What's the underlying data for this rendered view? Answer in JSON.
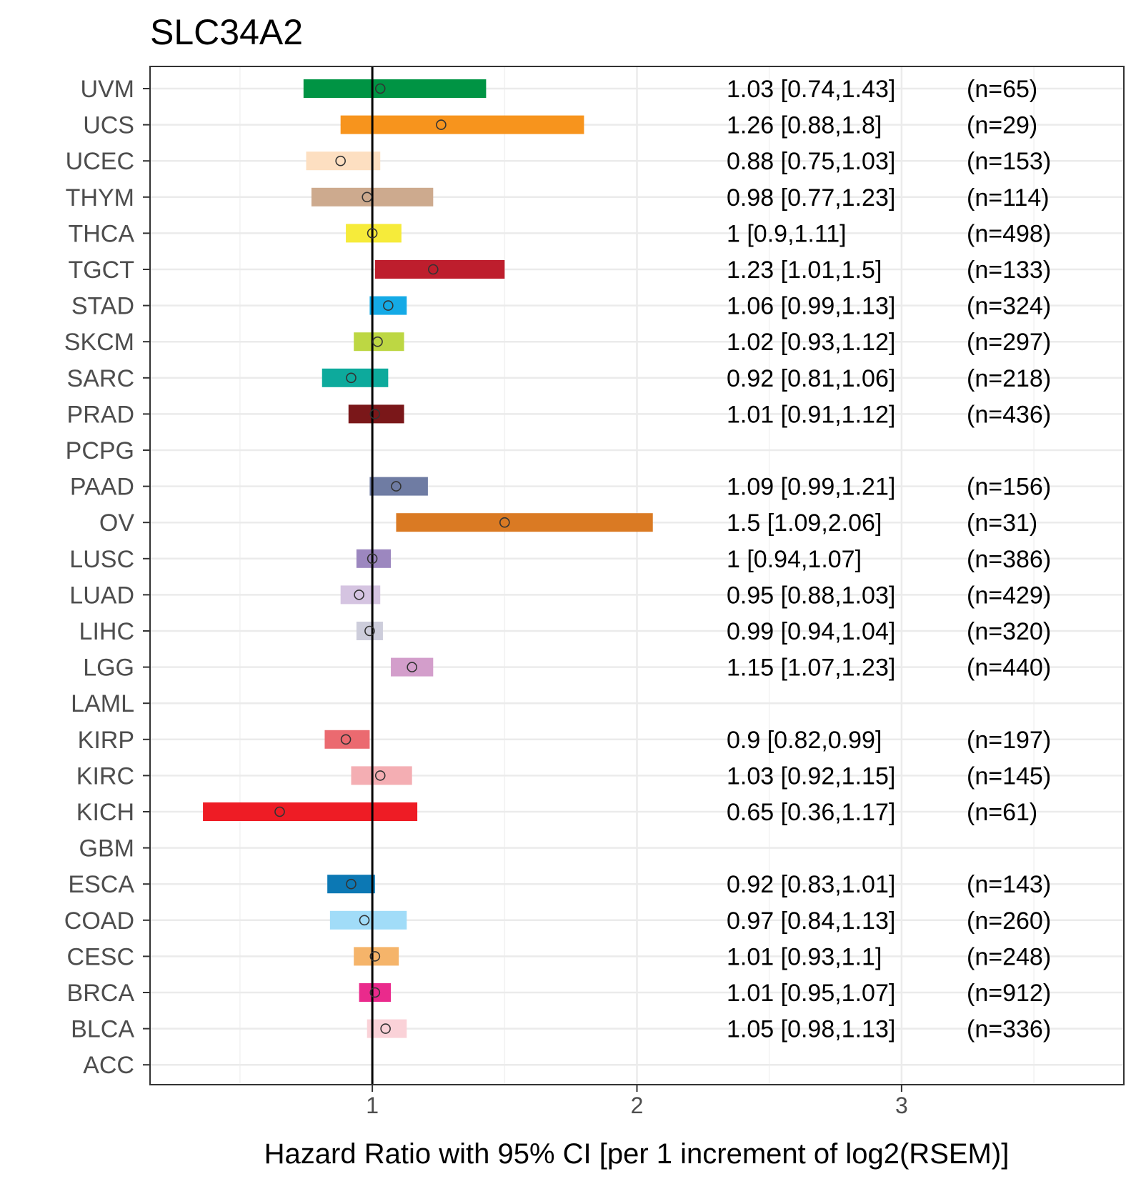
{
  "chart_data": {
    "type": "forest",
    "title": "SLC34A2",
    "xlabel": "Hazard Ratio with 95% CI [per 1 increment of log2(RSEM)]",
    "ylabel": "",
    "xlim": [
      0.16,
      3.84
    ],
    "xticks": [
      1,
      2,
      3
    ],
    "grid": true,
    "reference_line": 1,
    "rows": [
      {
        "label": "UVM",
        "hr": 1.03,
        "lo": 0.74,
        "hi": 1.43,
        "text": "1.03 [0.74,1.43]",
        "n": "(n=65)",
        "color": "#009444"
      },
      {
        "label": "UCS",
        "hr": 1.26,
        "lo": 0.88,
        "hi": 1.8,
        "text": "1.26 [0.88,1.8]",
        "n": "(n=29)",
        "color": "#F7941D"
      },
      {
        "label": "UCEC",
        "hr": 0.88,
        "lo": 0.75,
        "hi": 1.03,
        "text": "0.88 [0.75,1.03]",
        "n": "(n=153)",
        "color": "#FDDFC1"
      },
      {
        "label": "THYM",
        "hr": 0.98,
        "lo": 0.77,
        "hi": 1.23,
        "text": "0.98 [0.77,1.23]",
        "n": "(n=114)",
        "color": "#CDAA8E"
      },
      {
        "label": "THCA",
        "hr": 1,
        "lo": 0.9,
        "hi": 1.11,
        "text": "1 [0.9,1.11]",
        "n": "(n=498)",
        "color": "#F6EB3A"
      },
      {
        "label": "TGCT",
        "hr": 1.23,
        "lo": 1.01,
        "hi": 1.5,
        "text": "1.23 [1.01,1.5]",
        "n": "(n=133)",
        "color": "#BE1E2D"
      },
      {
        "label": "STAD",
        "hr": 1.06,
        "lo": 0.99,
        "hi": 1.13,
        "text": "1.06 [0.99,1.13]",
        "n": "(n=324)",
        "color": "#14AAE6"
      },
      {
        "label": "SKCM",
        "hr": 1.02,
        "lo": 0.93,
        "hi": 1.12,
        "text": "1.02 [0.93,1.12]",
        "n": "(n=297)",
        "color": "#BDD743"
      },
      {
        "label": "SARC",
        "hr": 0.92,
        "lo": 0.81,
        "hi": 1.06,
        "text": "0.92 [0.81,1.06]",
        "n": "(n=218)",
        "color": "#0DAA9C"
      },
      {
        "label": "PRAD",
        "hr": 1.01,
        "lo": 0.91,
        "hi": 1.12,
        "text": "1.01 [0.91,1.12]",
        "n": "(n=436)",
        "color": "#7A1719"
      },
      {
        "label": "PCPG",
        "hr": null,
        "lo": null,
        "hi": null,
        "text": "",
        "n": "",
        "color": ""
      },
      {
        "label": "PAAD",
        "hr": 1.09,
        "lo": 0.99,
        "hi": 1.21,
        "text": "1.09 [0.99,1.21]",
        "n": "(n=156)",
        "color": "#6F7CA3"
      },
      {
        "label": "OV",
        "hr": 1.5,
        "lo": 1.09,
        "hi": 2.06,
        "text": "1.5 [1.09,2.06]",
        "n": "(n=31)",
        "color": "#DA7A23"
      },
      {
        "label": "LUSC",
        "hr": 1,
        "lo": 0.94,
        "hi": 1.07,
        "text": "1 [0.94,1.07]",
        "n": "(n=386)",
        "color": "#9C87BF"
      },
      {
        "label": "LUAD",
        "hr": 0.95,
        "lo": 0.88,
        "hi": 1.03,
        "text": "0.95 [0.88,1.03]",
        "n": "(n=429)",
        "color": "#D5C4E1"
      },
      {
        "label": "LIHC",
        "hr": 0.99,
        "lo": 0.94,
        "hi": 1.04,
        "text": "0.99 [0.94,1.04]",
        "n": "(n=320)",
        "color": "#CDCDDB"
      },
      {
        "label": "LGG",
        "hr": 1.15,
        "lo": 1.07,
        "hi": 1.23,
        "text": "1.15 [1.07,1.23]",
        "n": "(n=440)",
        "color": "#D39ECB"
      },
      {
        "label": "LAML",
        "hr": null,
        "lo": null,
        "hi": null,
        "text": "",
        "n": "",
        "color": ""
      },
      {
        "label": "KIRP",
        "hr": 0.9,
        "lo": 0.82,
        "hi": 0.99,
        "text": "0.9 [0.82,0.99]",
        "n": "(n=197)",
        "color": "#EB6A70"
      },
      {
        "label": "KIRC",
        "hr": 1.03,
        "lo": 0.92,
        "hi": 1.15,
        "text": "1.03 [0.92,1.15]",
        "n": "(n=145)",
        "color": "#F4AEB3"
      },
      {
        "label": "KICH",
        "hr": 0.65,
        "lo": 0.36,
        "hi": 1.17,
        "text": "0.65 [0.36,1.17]",
        "n": "(n=61)",
        "color": "#EE1C25"
      },
      {
        "label": "GBM",
        "hr": null,
        "lo": null,
        "hi": null,
        "text": "",
        "n": "",
        "color": ""
      },
      {
        "label": "ESCA",
        "hr": 0.92,
        "lo": 0.83,
        "hi": 1.01,
        "text": "0.92 [0.83,1.01]",
        "n": "(n=143)",
        "color": "#0C78B4"
      },
      {
        "label": "COAD",
        "hr": 0.97,
        "lo": 0.84,
        "hi": 1.13,
        "text": "0.97 [0.84,1.13]",
        "n": "(n=260)",
        "color": "#A1DCF8"
      },
      {
        "label": "CESC",
        "hr": 1.01,
        "lo": 0.93,
        "hi": 1.1,
        "text": "1.01 [0.93,1.1]",
        "n": "(n=248)",
        "color": "#F5B46A"
      },
      {
        "label": "BRCA",
        "hr": 1.01,
        "lo": 0.95,
        "hi": 1.07,
        "text": "1.01 [0.95,1.07]",
        "n": "(n=912)",
        "color": "#EA2A8C"
      },
      {
        "label": "BLCA",
        "hr": 1.05,
        "lo": 0.98,
        "hi": 1.13,
        "text": "1.05 [0.98,1.13]",
        "n": "(n=336)",
        "color": "#FAD2D8"
      },
      {
        "label": "ACC",
        "hr": null,
        "lo": null,
        "hi": null,
        "text": "",
        "n": "",
        "color": ""
      }
    ]
  }
}
